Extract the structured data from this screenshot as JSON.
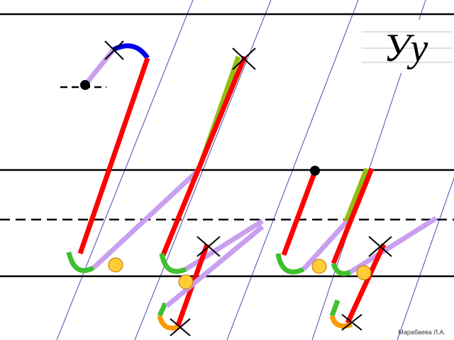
{
  "sample": "Уу",
  "signature": "Марабаева Л.А."
}
